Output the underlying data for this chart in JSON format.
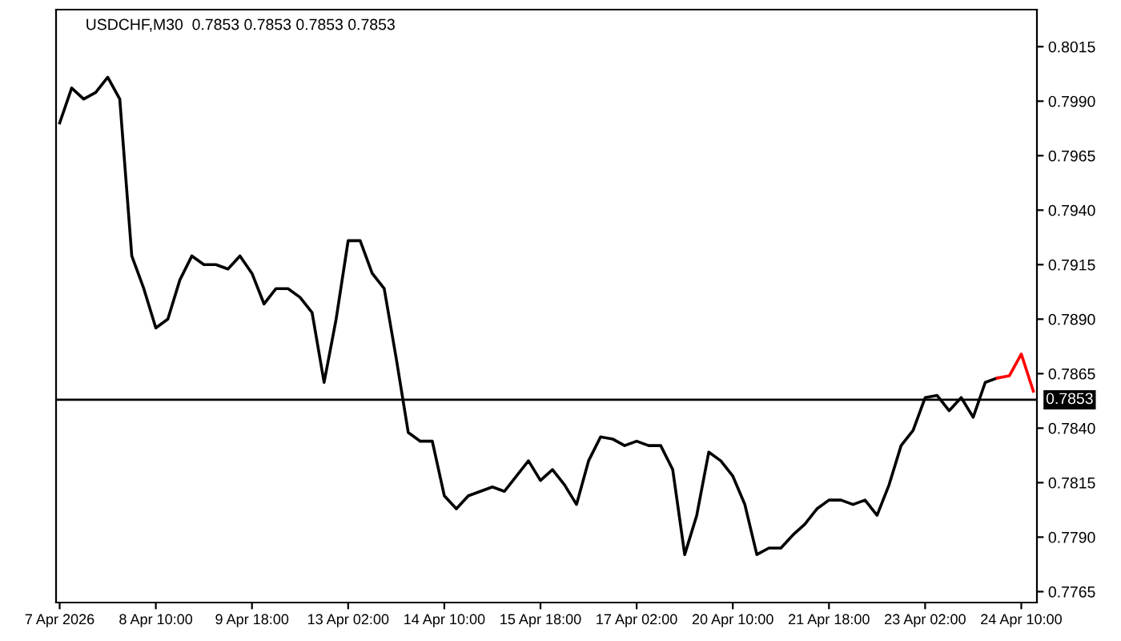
{
  "chart_data": {
    "type": "line",
    "title": "USDCHF,M30  0.7853 0.7853 0.7853 0.7853",
    "categories": [
      "7 Apr 2026",
      null,
      null,
      null,
      null,
      null,
      null,
      null,
      "8 Apr 10:00",
      null,
      null,
      null,
      null,
      null,
      null,
      null,
      "9 Apr 18:00",
      null,
      null,
      null,
      null,
      null,
      null,
      null,
      "13 Apr 02:00",
      null,
      null,
      null,
      null,
      null,
      null,
      null,
      "14 Apr 10:00",
      null,
      null,
      null,
      null,
      null,
      null,
      null,
      "15 Apr 18:00",
      null,
      null,
      null,
      null,
      null,
      null,
      null,
      "17 Apr 02:00",
      null,
      null,
      null,
      null,
      null,
      null,
      null,
      "20 Apr 10:00",
      null,
      null,
      null,
      null,
      null,
      null,
      null,
      "21 Apr 18:00",
      null,
      null,
      null,
      null,
      null,
      null,
      null,
      "23 Apr 02:00",
      null,
      null,
      null,
      null,
      null,
      null,
      null,
      "24 Apr 10:00",
      null
    ],
    "series": [
      {
        "color": "#000000",
        "values": [
          0.798,
          0.7996,
          0.7991,
          0.7994,
          0.8001,
          0.7991,
          0.7919,
          0.7904,
          0.7886,
          0.789,
          0.7908,
          0.7919,
          0.7915,
          0.7915,
          0.7913,
          0.7919,
          0.7911,
          0.7897,
          0.7904,
          0.7904,
          0.79,
          0.7893,
          0.7861,
          0.789,
          0.7926,
          0.7926,
          0.7911,
          0.7904,
          0.7872,
          0.7838,
          0.7834,
          0.7834,
          0.7809,
          0.7803,
          0.7809,
          0.7811,
          0.7813,
          0.7811,
          0.7818,
          0.7825,
          0.7816,
          0.7821,
          0.7814,
          0.7805,
          0.7825,
          0.7836,
          0.7835,
          0.7832,
          0.7834,
          0.7832,
          0.7832,
          0.7821,
          0.7782,
          0.78,
          0.7829,
          0.7825,
          0.7818,
          0.7805,
          0.7782,
          0.7785,
          0.7785,
          0.7791,
          0.7796,
          0.7803,
          0.7807,
          0.7807,
          0.7805,
          0.7807,
          0.78,
          0.7814,
          0.7832,
          0.7839,
          0.7854,
          0.7855,
          0.7848,
          0.7854,
          0.7845,
          0.7861,
          0.7863,
          null,
          null,
          null
        ]
      },
      {
        "color": "#ff0000",
        "values": [
          null,
          null,
          null,
          null,
          null,
          null,
          null,
          null,
          null,
          null,
          null,
          null,
          null,
          null,
          null,
          null,
          null,
          null,
          null,
          null,
          null,
          null,
          null,
          null,
          null,
          null,
          null,
          null,
          null,
          null,
          null,
          null,
          null,
          null,
          null,
          null,
          null,
          null,
          null,
          null,
          null,
          null,
          null,
          null,
          null,
          null,
          null,
          null,
          null,
          null,
          null,
          null,
          null,
          null,
          null,
          null,
          null,
          null,
          null,
          null,
          null,
          null,
          null,
          null,
          null,
          null,
          null,
          null,
          null,
          null,
          null,
          null,
          null,
          null,
          null,
          null,
          null,
          null,
          0.7863,
          0.7864,
          0.7874,
          0.7857
        ]
      }
    ],
    "ylim": [
      0.776,
      0.8032
    ],
    "yticks": [
      {
        "value": 0.7765,
        "label": "0.7765"
      },
      {
        "value": 0.779,
        "label": "0.7790"
      },
      {
        "value": 0.7815,
        "label": "0.7815"
      },
      {
        "value": 0.784,
        "label": "0.7840"
      },
      {
        "value": 0.7865,
        "label": "0.7865"
      },
      {
        "value": 0.789,
        "label": "0.7890"
      },
      {
        "value": 0.7915,
        "label": "0.7915"
      },
      {
        "value": 0.794,
        "label": "0.7940"
      },
      {
        "value": 0.7965,
        "label": "0.7965"
      },
      {
        "value": 0.799,
        "label": "0.7990"
      },
      {
        "value": 0.8015,
        "label": "0.8015"
      }
    ],
    "ref_lines": [
      {
        "axis": "y",
        "value": 0.7853,
        "label": "0.7853",
        "color": "#000000"
      }
    ],
    "grid": false,
    "legend": false
  }
}
